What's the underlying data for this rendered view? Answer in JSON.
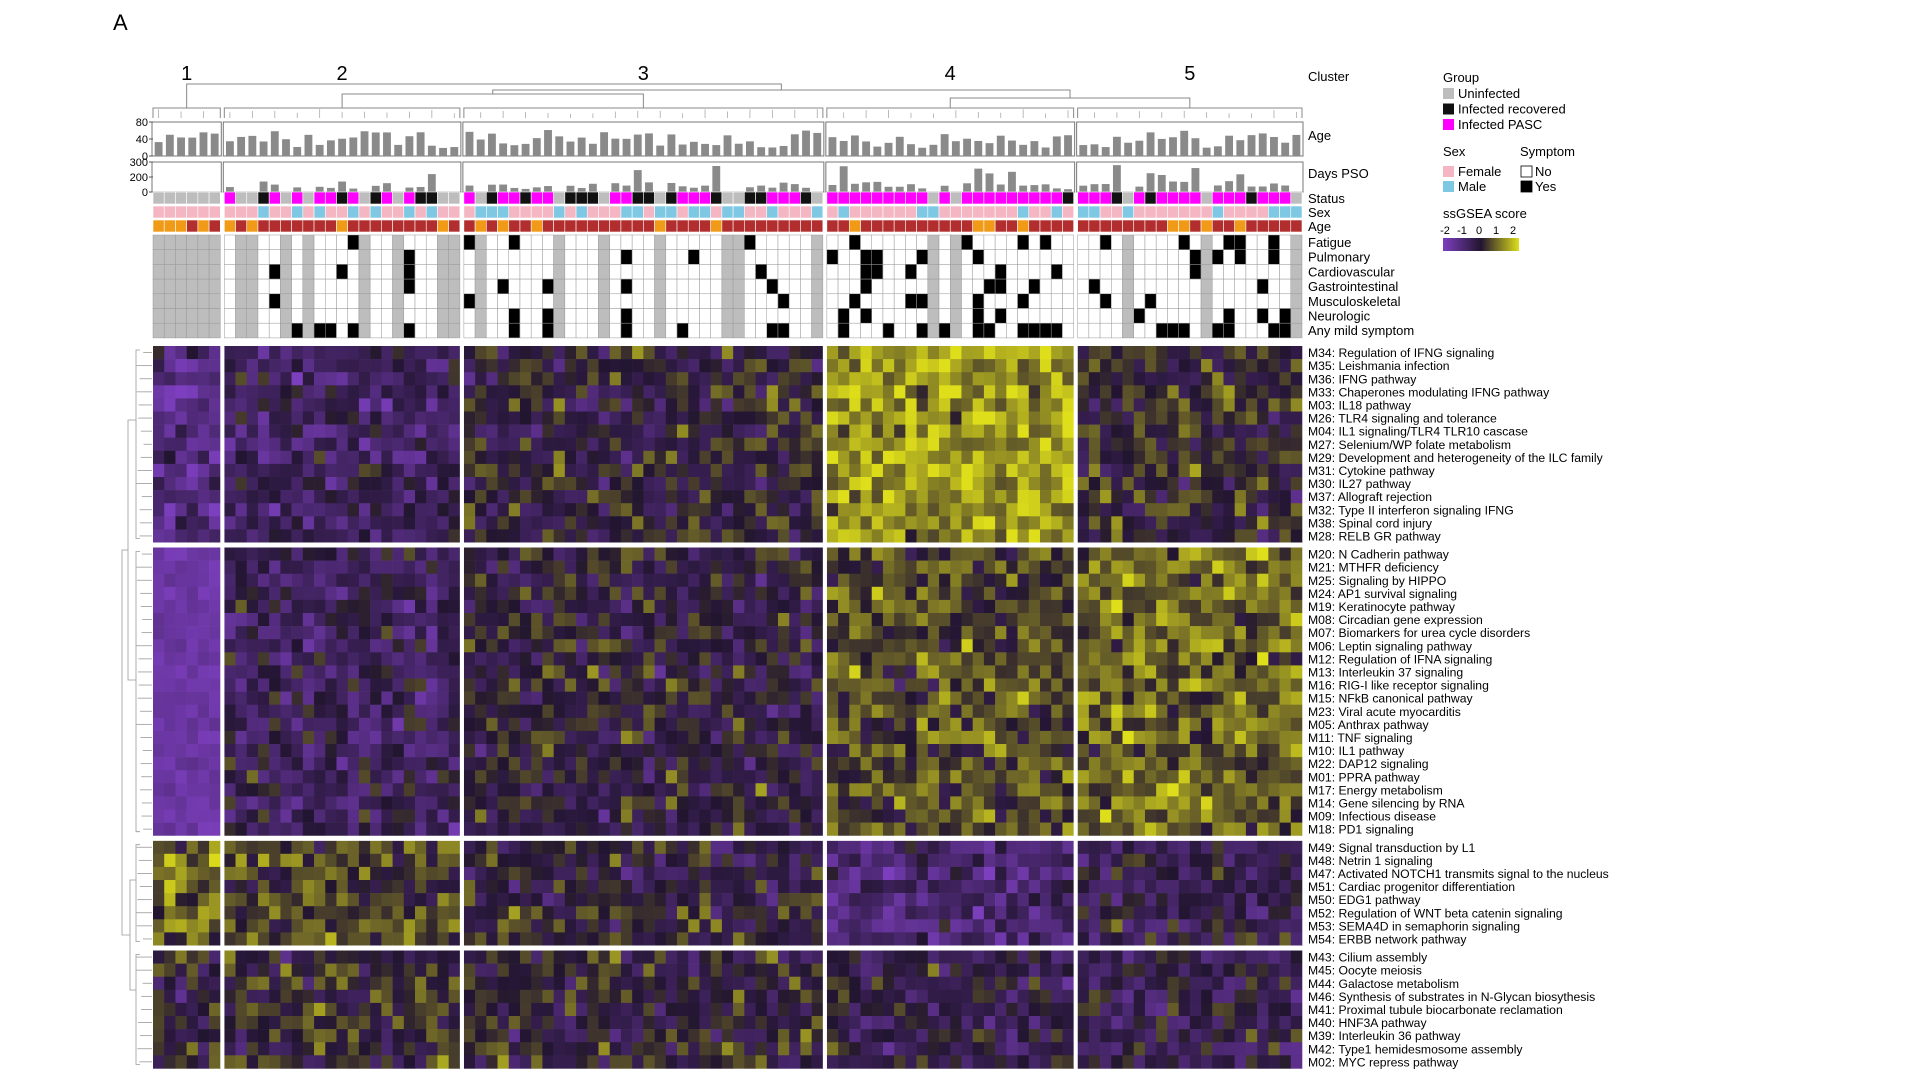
{
  "panel_label": "A",
  "chart_data": {
    "type": "heatmap",
    "title": "",
    "clusters": [
      {
        "label": "1",
        "n": 6
      },
      {
        "label": "2",
        "n": 21
      },
      {
        "label": "3",
        "n": 32
      },
      {
        "label": "4",
        "n": 22
      },
      {
        "label": "5",
        "n": 20
      }
    ],
    "row_label_cluster": "Cluster",
    "bar_tracks": [
      {
        "name": "Age",
        "ticks": [
          "80",
          "40",
          "0"
        ],
        "ylim": [
          0,
          80
        ]
      },
      {
        "name": "Days PSO",
        "ticks": [
          "300",
          "200",
          "0"
        ],
        "ylim": [
          0,
          300
        ]
      }
    ],
    "annotation_tracks": [
      "Status",
      "Sex",
      "Age"
    ],
    "symptom_tracks": [
      "Fatigue",
      "Pulmonary",
      "Cardiovascular",
      "Gastrointestinal",
      "Musculoskeletal",
      "Neurologic",
      "Any mild symptom"
    ],
    "legend": {
      "group_title": "Group",
      "group_items": [
        {
          "label": "Uninfected",
          "color": "#bdbdbd"
        },
        {
          "label": "Infected recovered",
          "color": "#111111"
        },
        {
          "label": "Infected PASC",
          "color": "#ff00ff"
        }
      ],
      "sex_title": "Sex",
      "sex_items": [
        {
          "label": "Female",
          "color": "#f4b6c2"
        },
        {
          "label": "Male",
          "color": "#7ec8e3"
        }
      ],
      "symptom_title": "Symptom",
      "symptom_items": [
        {
          "label": "No",
          "color": "#ffffff"
        },
        {
          "label": "Yes",
          "color": "#000000"
        }
      ],
      "score_title": "ssGSEA score",
      "score_ticks": [
        "-2",
        "-1",
        "0",
        "1",
        "2"
      ],
      "score_colors": [
        "#7d3fbf",
        "#221530",
        "#dede1a"
      ]
    },
    "module_groups": [
      {
        "modules": [
          "M34: Regulation of IFNG signaling",
          "M35: Leishmania infection",
          "M36: IFNG pathway",
          "M33: Chaperones modulating IFNG pathway",
          "M03: IL18 pathway",
          "M26: TLR4 signaling and tolerance",
          "M04: IL1 signaling/TLR4 TLR10 cascase",
          "M27: Selenium/WP folate metabolism",
          "M29: Development and heterogeneity of the ILC family",
          "M31: Cytokine pathway",
          "M30: IL27 pathway",
          "M37: Allograft rejection",
          "M32: Type II interferon signaling IFNG",
          "M38: Spinal cord injury",
          "M28: RELB GR pathway"
        ],
        "mean_score": [
          -1.2,
          -0.6,
          0.0,
          1.3,
          0.1
        ]
      },
      {
        "modules": [
          "M20: N Cadherin pathway",
          "M21: MTHFR deficiency",
          "M25: Signaling by HIPPO",
          "M24: AP1 survival signaling",
          "M19: Keratinocyte pathway",
          "M08: Circadian gene expression",
          "M07: Biomarkers for urea cycle disorders",
          "M06: Leptin signaling pathway",
          "M12: Regulation of IFNA signaling",
          "M13: Interleukin 37 signaling",
          "M16: RIG-I like receptor signaling",
          "M15: NFkB canonical pathway",
          "M23: Viral acute myocarditis",
          "M05: Anthrax pathway",
          "M11: TNF signaling",
          "M10: IL1 pathway",
          "M22: DAP12 signaling",
          "M01: PPRA pathway",
          "M17: Energy metabolism",
          "M14: Gene silencing by RNA",
          "M09: Infectious disease",
          "M18: PD1 signaling"
        ],
        "mean_score": [
          -1.6,
          -0.5,
          -0.1,
          0.5,
          0.8
        ]
      },
      {
        "modules": [
          "M49: Signal transduction by L1",
          "M48: Netrin 1 signaling",
          "M47: Activated NOTCH1 transmits signal to the nucleus",
          "M51: Cardiac progenitor differentiation",
          "M50: EDG1 pathway",
          "M52: Regulation of WNT beta catenin signaling",
          "M53: SEMA4D in semaphorin signaling",
          "M54: ERBB network pathway"
        ],
        "mean_score": [
          0.8,
          0.4,
          0.0,
          -0.9,
          -0.4
        ]
      },
      {
        "modules": [
          "M43: Cilium assembly",
          "M45: Oocyte meiosis",
          "M44: Galactose metabolism",
          "M46: Synthesis of substrates in N-Glycan biosythesis",
          "M41: Proximal tubule biocarbonate reclamation",
          "M40: HNF3A pathway",
          "M39: Interleukin 36 pathway",
          "M42: Type1 hemidesmosome assembly",
          "M02: MYC repress pathway"
        ],
        "mean_score": [
          0.0,
          0.1,
          0.0,
          -0.3,
          -0.3
        ]
      }
    ]
  }
}
